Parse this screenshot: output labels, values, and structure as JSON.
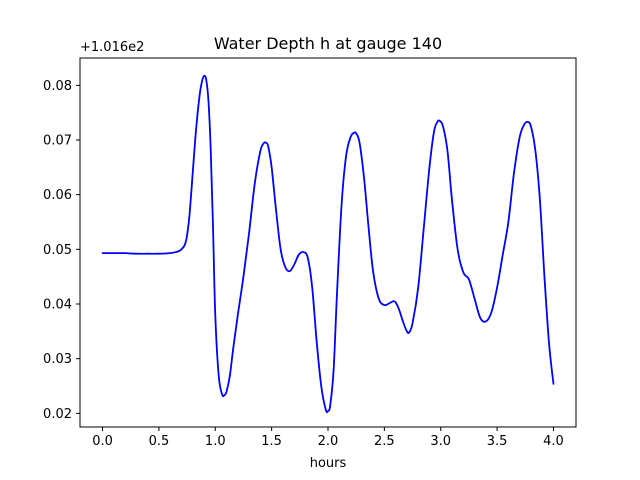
{
  "chart_data": {
    "type": "line",
    "title": "Water Depth h at gauge 140",
    "xlabel": "hours",
    "ylabel": "",
    "y_offset_label": "+1.016e2",
    "xlim": [
      -0.2,
      4.2
    ],
    "ylim": [
      0.0175,
      0.085
    ],
    "x_ticks": [
      0.0,
      0.5,
      1.0,
      1.5,
      2.0,
      2.5,
      3.0,
      3.5,
      4.0
    ],
    "x_tick_labels": [
      "0.0",
      "0.5",
      "1.0",
      "1.5",
      "2.0",
      "2.5",
      "3.0",
      "3.5",
      "4.0"
    ],
    "y_ticks": [
      0.02,
      0.03,
      0.04,
      0.05,
      0.06,
      0.07,
      0.08
    ],
    "y_tick_labels": [
      "0.02",
      "0.03",
      "0.04",
      "0.05",
      "0.06",
      "0.07",
      "0.08"
    ],
    "grid": false,
    "series": [
      {
        "color": "#0000ff",
        "x": [
          0.0,
          0.1,
          0.2,
          0.3,
          0.4,
          0.5,
          0.6,
          0.65,
          0.7,
          0.74,
          0.77,
          0.8,
          0.83,
          0.86,
          0.88,
          0.9,
          0.92,
          0.94,
          0.96,
          0.98,
          1.0,
          1.03,
          1.06,
          1.08,
          1.1,
          1.13,
          1.16,
          1.2,
          1.25,
          1.3,
          1.35,
          1.4,
          1.43,
          1.45,
          1.47,
          1.5,
          1.54,
          1.58,
          1.62,
          1.66,
          1.7,
          1.74,
          1.78,
          1.82,
          1.86,
          1.9,
          1.94,
          1.98,
          2.0,
          2.02,
          2.05,
          2.08,
          2.12,
          2.16,
          2.2,
          2.23,
          2.25,
          2.28,
          2.32,
          2.36,
          2.4,
          2.45,
          2.5,
          2.55,
          2.58,
          2.6,
          2.63,
          2.67,
          2.7,
          2.72,
          2.75,
          2.8,
          2.85,
          2.9,
          2.94,
          2.97,
          2.99,
          3.02,
          3.06,
          3.1,
          3.15,
          3.2,
          3.25,
          3.3,
          3.35,
          3.4,
          3.45,
          3.5,
          3.55,
          3.6,
          3.65,
          3.7,
          3.74,
          3.77,
          3.8,
          3.84,
          3.88,
          3.92,
          3.96,
          4.0
        ],
        "y": [
          0.0493,
          0.0493,
          0.0493,
          0.0492,
          0.0492,
          0.0492,
          0.0493,
          0.0495,
          0.05,
          0.0515,
          0.056,
          0.064,
          0.072,
          0.078,
          0.0805,
          0.0817,
          0.081,
          0.077,
          0.068,
          0.054,
          0.038,
          0.027,
          0.0235,
          0.0233,
          0.024,
          0.027,
          0.032,
          0.038,
          0.045,
          0.053,
          0.062,
          0.068,
          0.0694,
          0.0695,
          0.0688,
          0.065,
          0.057,
          0.05,
          0.0468,
          0.046,
          0.0472,
          0.049,
          0.0495,
          0.0485,
          0.043,
          0.033,
          0.025,
          0.0207,
          0.0204,
          0.0215,
          0.028,
          0.042,
          0.058,
          0.067,
          0.0705,
          0.0713,
          0.0712,
          0.0695,
          0.063,
          0.054,
          0.046,
          0.041,
          0.0398,
          0.0402,
          0.0405,
          0.0403,
          0.039,
          0.0365,
          0.035,
          0.0348,
          0.0365,
          0.043,
          0.054,
          0.065,
          0.0715,
          0.0733,
          0.0735,
          0.0725,
          0.068,
          0.059,
          0.05,
          0.0458,
          0.0445,
          0.041,
          0.0375,
          0.0368,
          0.0385,
          0.043,
          0.049,
          0.055,
          0.064,
          0.0705,
          0.0728,
          0.0733,
          0.0725,
          0.068,
          0.059,
          0.045,
          0.033,
          0.0254
        ]
      }
    ]
  }
}
